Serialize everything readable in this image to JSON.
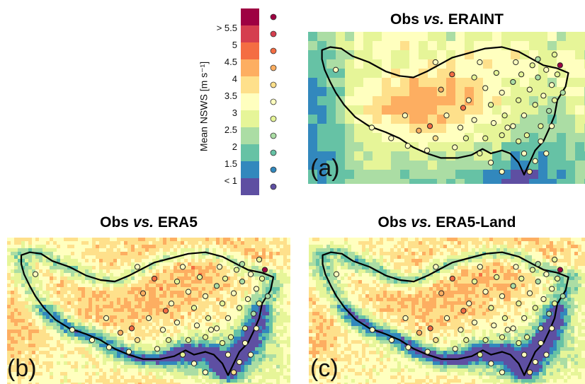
{
  "colorbar": {
    "axis_label": "Mean NSWS [m s⁻¹]",
    "ticks": [
      "> 5.5",
      "5",
      "4.5",
      "4",
      "3.5",
      "3",
      "2.5",
      "2",
      "1.5",
      "< 1"
    ],
    "colors": [
      "#9e0142",
      "#d53e4f",
      "#f46d43",
      "#fdae61",
      "#fee08b",
      "#ffffbf",
      "#e6f598",
      "#abdda4",
      "#66c2a5",
      "#3288bd",
      "#5e4fa2"
    ]
  },
  "panels": [
    {
      "id": "a",
      "title_prefix": "Obs ",
      "title_italic": "vs.",
      "title_suffix": " ERAINT",
      "label": "(a)"
    },
    {
      "id": "b",
      "title_prefix": "Obs ",
      "title_italic": "vs.",
      "title_suffix": " ERA5",
      "label": "(b)"
    },
    {
      "id": "c",
      "title_prefix": "Obs ",
      "title_italic": "vs.",
      "title_suffix": " ERA5-Land",
      "label": "(c)"
    }
  ]
}
